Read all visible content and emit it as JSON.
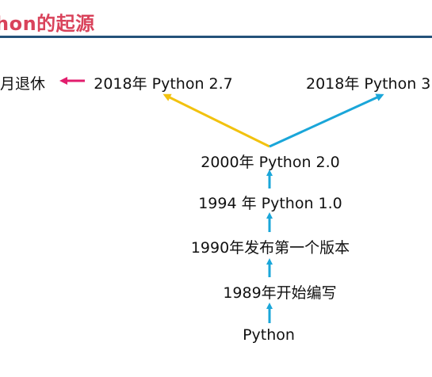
{
  "header": {
    "title": "hon的起源"
  },
  "diagram": {
    "nodes": {
      "origin": "Python",
      "start_writing": "1989年开始编写",
      "first_release": "1990年发布第一个版本",
      "v1": "1994 年 Python 1.0",
      "v2": "2000年 Python 2.0",
      "v27": "2018年 Python 2.7",
      "v3": "2018年 Python 3",
      "retire": "月退休"
    },
    "colors": {
      "title": "#d9435b",
      "title_rule": "#24527a",
      "chain_arrow": "#1aa6d9",
      "branch_to_2_7": "#f2c20f",
      "branch_to_3": "#1aa6d9",
      "retire_arrow": "#e21d6d"
    }
  }
}
